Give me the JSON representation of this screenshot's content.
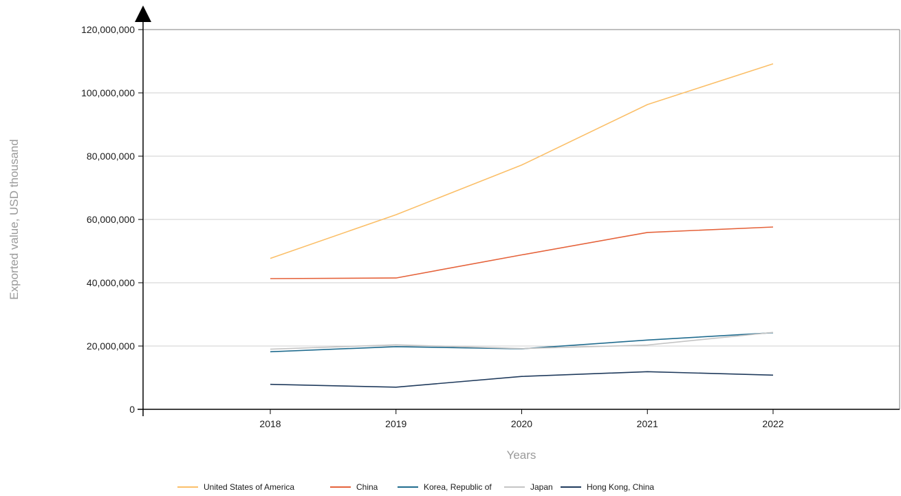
{
  "chart_data": {
    "type": "line",
    "xlabel": "Years",
    "ylabel": "Exported value, USD thousand",
    "categories": [
      "2018",
      "2019",
      "2020",
      "2021",
      "2022"
    ],
    "ylim": [
      0,
      120000000
    ],
    "yticks": [
      0,
      20000000,
      40000000,
      60000000,
      80000000,
      100000000,
      120000000
    ],
    "ytick_labels": [
      "0",
      "20,000,000",
      "40,000,000",
      "60,000,000",
      "80,000,000",
      "100,000,000",
      "120,000,000"
    ],
    "grid": true,
    "legend_position": "bottom",
    "series": [
      {
        "name": "United States of America",
        "color": "#fbbf68",
        "values": [
          47700000,
          61500000,
          77200000,
          96300000,
          109200000
        ]
      },
      {
        "name": "China",
        "color": "#e5623a",
        "values": [
          41300000,
          41500000,
          48800000,
          55900000,
          57600000
        ]
      },
      {
        "name": "Korea, Republic of",
        "color": "#1f6b8e",
        "values": [
          18200000,
          19800000,
          19100000,
          21900000,
          24200000
        ]
      },
      {
        "name": "Japan",
        "color": "#c4c4c4",
        "values": [
          19000000,
          20400000,
          19200000,
          20300000,
          24300000
        ]
      },
      {
        "name": "Hong Kong, China",
        "color": "#1f3a5c",
        "values": [
          7900000,
          7000000,
          10400000,
          11900000,
          10800000
        ]
      }
    ]
  }
}
